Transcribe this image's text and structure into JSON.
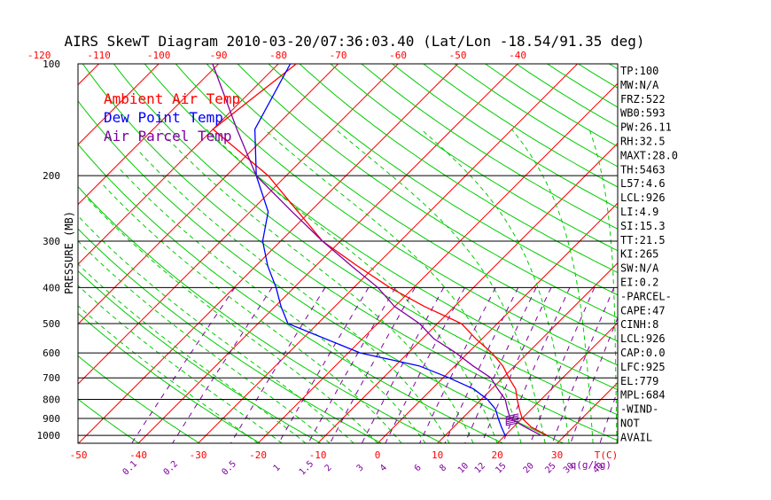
{
  "chart_data": {
    "type": "line",
    "title": "AIRS SkewT Diagram 2010-03-20/07:36:03.40 (Lat/Lon -18.54/91.35 deg)",
    "ylabel": "PRESSURE (MB)",
    "y_scale": "log",
    "ylim": [
      1050,
      100
    ],
    "y_ticks": [
      {
        "value": 100,
        "label": "100"
      },
      {
        "value": 200,
        "label": "200"
      },
      {
        "value": 300,
        "label": "300"
      },
      {
        "value": 400,
        "label": "400"
      },
      {
        "value": 500,
        "label": "500"
      },
      {
        "value": 600,
        "label": "600"
      },
      {
        "value": 700,
        "label": "700"
      },
      {
        "value": 800,
        "label": "800"
      },
      {
        "value": 900,
        "label": "900"
      },
      {
        "value": 1000,
        "label": "1000"
      }
    ],
    "top_temp_ticks": [
      -120,
      -110,
      -100,
      -90,
      -80,
      -70,
      -60,
      -50,
      -40
    ],
    "bottom_temp_ticks": [
      -50,
      -40,
      -30,
      -20,
      -10,
      0,
      10,
      20,
      30
    ],
    "bottom_temp_unit_label": "T(C)",
    "mixing_ratio_labels": [
      "0.1",
      "0.2",
      "0.5",
      "1",
      "1.5",
      "2",
      "3",
      "4",
      "6",
      "8",
      "10",
      "12",
      "15",
      "20",
      "25",
      "30",
      "40"
    ],
    "mixing_ratio_unit_label": "q(g/kg)",
    "legend": [
      {
        "label": "Ambient Air Temp",
        "color": "#ff0000"
      },
      {
        "label": "Dew Point Temp",
        "color": "#0000ff"
      },
      {
        "label": "Air Parcel Temp",
        "color": "#8000a0"
      }
    ],
    "series": [
      {
        "name": "Ambient Air Temp",
        "color": "#ff0000",
        "points": [
          [
            100,
            -77
          ],
          [
            150,
            -80
          ],
          [
            200,
            -63
          ],
          [
            250,
            -52
          ],
          [
            300,
            -43
          ],
          [
            350,
            -33
          ],
          [
            400,
            -24
          ],
          [
            450,
            -15
          ],
          [
            500,
            -6
          ],
          [
            550,
            -1
          ],
          [
            600,
            4
          ],
          [
            650,
            8
          ],
          [
            700,
            11
          ],
          [
            750,
            14
          ],
          [
            800,
            16
          ],
          [
            850,
            18
          ],
          [
            900,
            20
          ],
          [
            950,
            23
          ],
          [
            1000,
            27
          ]
        ]
      },
      {
        "name": "Dew Point Temp",
        "color": "#0000ff",
        "points": [
          [
            100,
            -78
          ],
          [
            150,
            -73
          ],
          [
            200,
            -65
          ],
          [
            250,
            -57
          ],
          [
            300,
            -53
          ],
          [
            350,
            -48
          ],
          [
            400,
            -43
          ],
          [
            450,
            -39
          ],
          [
            500,
            -35
          ],
          [
            600,
            -18
          ],
          [
            650,
            -6
          ],
          [
            700,
            1
          ],
          [
            750,
            7
          ],
          [
            800,
            11
          ],
          [
            850,
            14
          ],
          [
            900,
            16
          ],
          [
            950,
            18
          ],
          [
            1000,
            20
          ]
        ]
      },
      {
        "name": "Air Parcel Temp",
        "color": "#8000a0",
        "points": [
          [
            100,
            -91
          ],
          [
            150,
            -76
          ],
          [
            200,
            -65
          ],
          [
            250,
            -53
          ],
          [
            300,
            -43
          ],
          [
            350,
            -34
          ],
          [
            400,
            -26
          ],
          [
            450,
            -20
          ],
          [
            500,
            -13
          ],
          [
            550,
            -8
          ],
          [
            600,
            -2
          ],
          [
            650,
            3
          ],
          [
            700,
            8
          ],
          [
            750,
            11
          ],
          [
            800,
            14
          ],
          [
            850,
            16
          ],
          [
            900,
            18
          ],
          [
            950,
            22
          ],
          [
            1000,
            26
          ]
        ]
      }
    ],
    "wind_barb": {
      "pressure_range": [
        940,
        890
      ],
      "color": "#8000a0"
    },
    "sidebar": [
      "TP:100",
      "MW:N/A",
      "FRZ:522",
      "WB0:593",
      "PW:26.11",
      "RH:32.5",
      "MAXT:28.0",
      "TH:5463",
      "L57:4.6",
      "LCL:926",
      "LI:4.9",
      "SI:15.3",
      "TT:21.5",
      "KI:265",
      "SW:N/A",
      "EI:0.2",
      "-PARCEL-",
      "CAPE:47",
      "CINH:8",
      "LCL:926",
      "CAP:0.0",
      "LFC:925",
      "EL:779",
      "MPL:684",
      "-WIND-",
      "NOT",
      "AVAIL"
    ],
    "colors": {
      "isotherm": "#ff0000",
      "dry_adiabat": "#00cc00",
      "moist_adiabat": "#00cc00",
      "mixing_ratio": "#8000a0",
      "isobar": "#000000",
      "axis_label": "#ff0000",
      "mixing_label": "#8000a0"
    },
    "grid": true
  }
}
